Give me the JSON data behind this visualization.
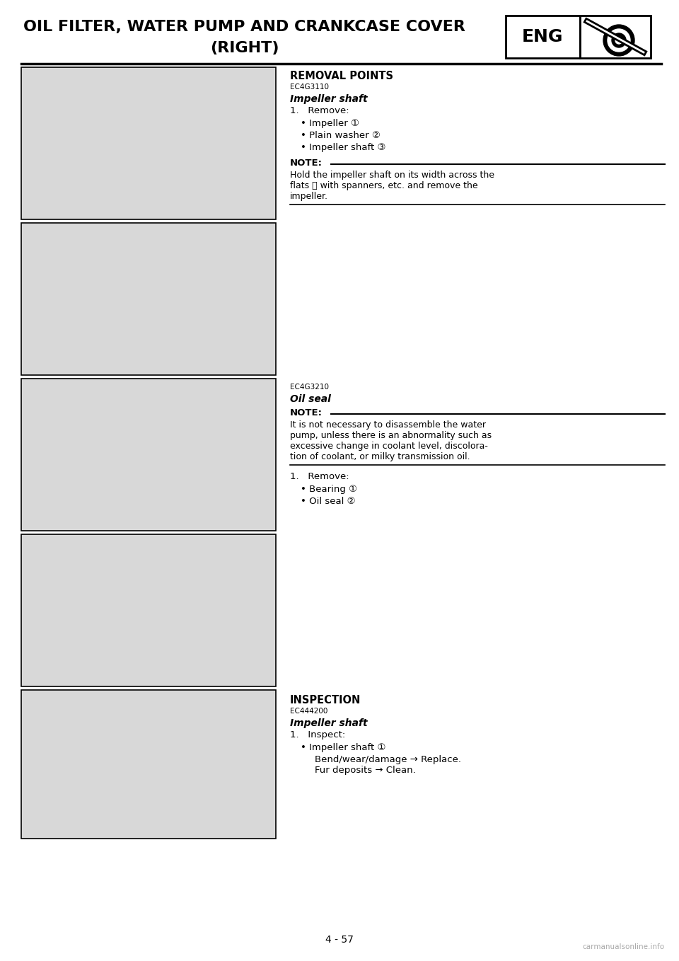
{
  "page_bg": "#ffffff",
  "page_number": "4 - 57",
  "header_title": "OIL FILTER, WATER PUMP AND CRANKCASE COVER",
  "header_subtitle": "(RIGHT)",
  "header_eng_label": "ENG",
  "section1_label": "REMOVAL POINTS",
  "section1_code": "EC4G3110",
  "section1_subtitle": "Impeller shaft",
  "section1_step": "1.   Remove:",
  "section1_bullets": [
    "Impeller ①",
    "Plain washer ②",
    "Impeller shaft ③"
  ],
  "note1_header": "NOTE:",
  "note1_lines": [
    "Hold the impeller shaft on its width across the",
    "flats ⓐ with spanners, etc. and remove the",
    "impeller."
  ],
  "section2_code": "EC4G3210",
  "section2_subtitle": "Oil seal",
  "note2_header": "NOTE:",
  "note2_lines": [
    "It is not necessary to disassemble the water",
    "pump, unless there is an abnormality such as",
    "excessive change in coolant level, discolora-",
    "tion of coolant, or milky transmission oil."
  ],
  "section2_step": "1.   Remove:",
  "section2_bullets": [
    "Bearing ①",
    "Oil seal ②"
  ],
  "section3_label": "INSPECTION",
  "section3_code": "EC444200",
  "section3_subtitle": "Impeller shaft",
  "section3_step": "1.   Inspect:",
  "section3_bullet": "Impeller shaft ①",
  "section3_sub1": "Bend/wear/damage → Replace.",
  "section3_sub2": "Fur deposits → Clean.",
  "watermark": "carmanualsonline.info",
  "img_facecolor": "#d8d8d8",
  "img_edgecolor": "#000000"
}
